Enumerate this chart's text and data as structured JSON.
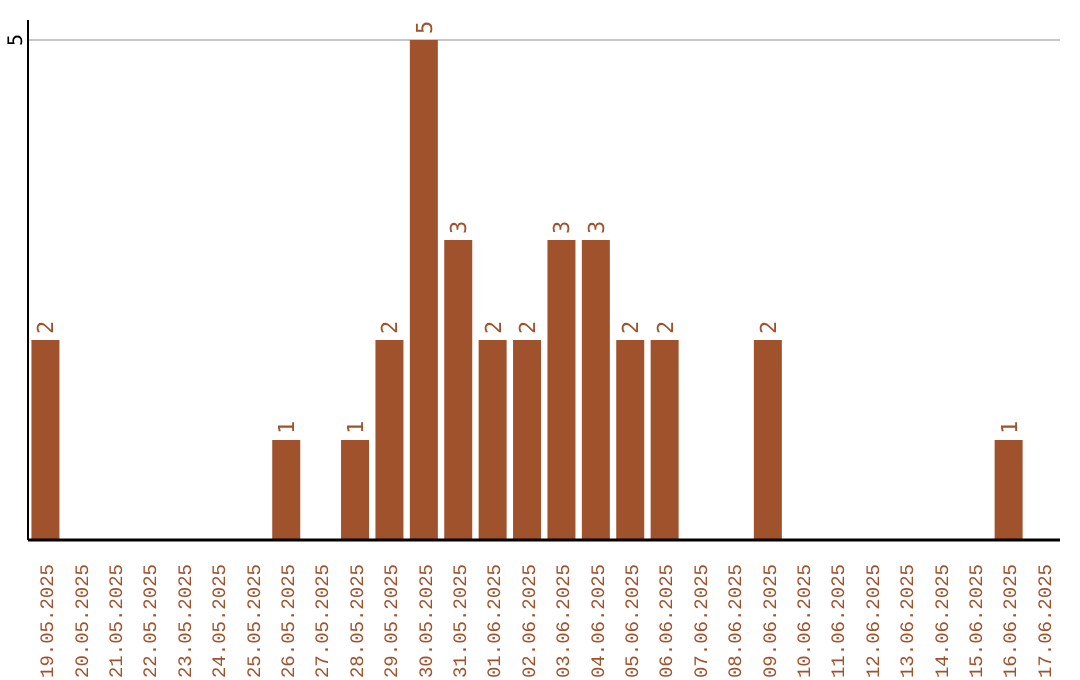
{
  "chart_data": {
    "type": "bar",
    "categories": [
      "19.05.2025",
      "20.05.2025",
      "21.05.2025",
      "22.05.2025",
      "23.05.2025",
      "24.05.2025",
      "25.05.2025",
      "26.05.2025",
      "27.05.2025",
      "28.05.2025",
      "29.05.2025",
      "30.05.2025",
      "31.05.2025",
      "01.06.2025",
      "02.06.2025",
      "03.06.2025",
      "04.06.2025",
      "05.06.2025",
      "06.06.2025",
      "07.06.2025",
      "08.06.2025",
      "09.06.2025",
      "10.06.2025",
      "11.06.2025",
      "12.06.2025",
      "13.06.2025",
      "14.06.2025",
      "15.06.2025",
      "16.06.2025",
      "17.06.2025"
    ],
    "values": [
      2,
      0,
      0,
      0,
      0,
      0,
      0,
      1,
      0,
      1,
      2,
      5,
      3,
      2,
      2,
      3,
      3,
      2,
      2,
      0,
      0,
      2,
      0,
      0,
      0,
      0,
      0,
      0,
      1,
      0
    ],
    "value_labels": [
      "2",
      null,
      null,
      null,
      null,
      null,
      null,
      "1",
      null,
      "1",
      "2",
      "5",
      "3",
      "2",
      "2",
      "3",
      "3",
      "2",
      "2",
      null,
      null,
      "2",
      null,
      null,
      null,
      null,
      null,
      null,
      "1",
      null
    ],
    "color": "#a0522d",
    "ylim": [
      0,
      5.2
    ],
    "yticks": [
      5
    ],
    "grid": "y"
  }
}
